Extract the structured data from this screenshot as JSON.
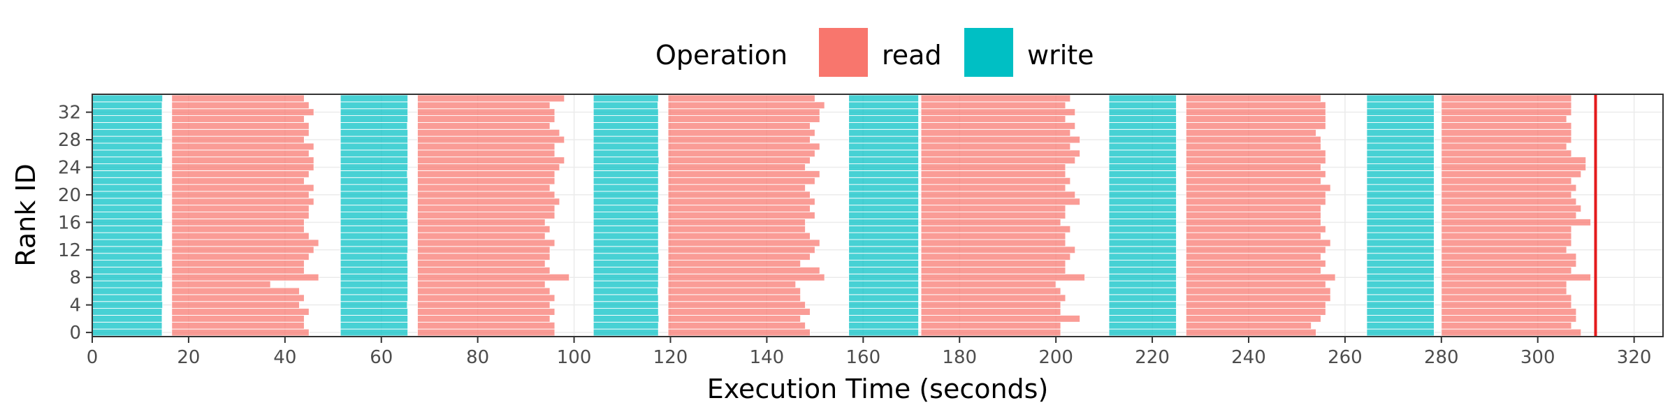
{
  "chart_data": {
    "type": "timeline",
    "xlabel": "Execution Time (seconds)",
    "ylabel": "Rank ID",
    "xlim": [
      0,
      326
    ],
    "ylim": [
      -0.6,
      34.6
    ],
    "x_ticks": [
      0,
      20,
      40,
      60,
      80,
      100,
      120,
      140,
      160,
      180,
      200,
      220,
      240,
      260,
      280,
      300,
      320
    ],
    "y_ticks": [
      0,
      4,
      8,
      12,
      16,
      20,
      24,
      28,
      32
    ],
    "ranks": 35,
    "legend": {
      "title": "Operation",
      "position": "top",
      "entries": [
        {
          "name": "read",
          "color": "#F8766D"
        },
        {
          "name": "write",
          "color": "#00BFC4"
        }
      ]
    },
    "grid": true,
    "end_marker": {
      "x": 312,
      "color": "#E41A1C"
    },
    "series": [
      {
        "name": "write",
        "color": "#00BFC4",
        "phases": [
          {
            "start": 0,
            "end": [
              14.5,
              14.5,
              14.5,
              14.5,
              14.6,
              14.5,
              14.5,
              14.6,
              14.5,
              14.6,
              14.5,
              14.5,
              14.5,
              14.6,
              14.5,
              14.5,
              14.6,
              14.5,
              14.5,
              14.5,
              14.6,
              14.5,
              14.5,
              14.5,
              14.5,
              14.6,
              14.5,
              14.5,
              14.6,
              14.5,
              14.5,
              14.5,
              14.5,
              14.5,
              14.6
            ]
          },
          {
            "start": 51.5,
            "end": [
              65.5,
              65.5,
              65.5,
              65.5,
              65.4,
              65.5,
              65.5,
              65.5,
              65.5,
              65.5,
              65.5,
              65.4,
              65.5,
              65.5,
              65.5,
              65.5,
              65.5,
              65.4,
              65.5,
              65.5,
              65.5,
              65.5,
              65.5,
              65.4,
              65.5,
              65.5,
              65.5,
              65.5,
              65.5,
              65.5,
              65.4,
              65.5,
              65.5,
              65.5,
              65.5
            ]
          },
          {
            "start": 104,
            "end": [
              117.5,
              117.5,
              117.6,
              117.5,
              117.5,
              117.5,
              117.4,
              117.5,
              117.5,
              117.5,
              117.5,
              117.6,
              117.5,
              117.5,
              117.5,
              117.5,
              117.5,
              117.5,
              117.4,
              117.5,
              117.5,
              117.5,
              117.5,
              117.5,
              117.5,
              117.6,
              117.5,
              117.5,
              117.5,
              117.5,
              117.5,
              117.5,
              117.5,
              117.4,
              117.5
            ]
          },
          {
            "start": 157,
            "end": [
              171.5,
              171.5,
              171.5,
              171.5,
              171.5,
              171.5,
              171.5,
              171.5,
              171.5,
              171.5,
              171.5,
              171.5,
              171.5,
              171.5,
              171.5,
              171.5,
              171.5,
              171.5,
              171.5,
              171.5,
              171.5,
              171.5,
              171.5,
              171.5,
              171.5,
              171.5,
              171.5,
              171.5,
              171.5,
              171.5,
              171.5,
              171.5,
              171.5,
              171.5,
              171.5
            ]
          },
          {
            "start": 211,
            "end": [
              225,
              225,
              225,
              225,
              225,
              225,
              225,
              225,
              225,
              225,
              225,
              225,
              225,
              225,
              225,
              225,
              225,
              225,
              225,
              225,
              225,
              225,
              225,
              225,
              225,
              225,
              225,
              225,
              225,
              225,
              225,
              225,
              225,
              225,
              225
            ]
          },
          {
            "start": 264.5,
            "end": [
              278.5,
              278.5,
              278.5,
              278.5,
              278.5,
              278.5,
              278.5,
              278.5,
              278.5,
              278.5,
              278.5,
              278.5,
              278.5,
              278.5,
              278.5,
              278.5,
              278.5,
              278.5,
              278.5,
              278.5,
              278.5,
              278.5,
              278.5,
              278.5,
              278.5,
              278.5,
              278.5,
              278.5,
              278.5,
              278.5,
              278.5,
              278.5,
              278.5,
              278.5,
              278.5
            ]
          }
        ]
      },
      {
        "name": "read",
        "color": "#F8766D",
        "phases": [
          {
            "start": 16.5,
            "end": [
              45,
              44,
              44,
              45,
              43,
              44,
              43,
              37,
              47,
              44,
              44,
              45,
              46,
              47,
              45,
              44,
              44,
              45,
              45,
              46,
              45,
              46,
              44,
              45,
              46,
              46,
              45,
              46,
              44,
              45,
              45,
              44,
              46,
              45,
              44
            ]
          },
          {
            "start": 67.5,
            "end": [
              96,
              96,
              95,
              96,
              95,
              96,
              95,
              94,
              99,
              95,
              94,
              95,
              95,
              96,
              94,
              95,
              94,
              96,
              96,
              97,
              96,
              95,
              96,
              96,
              97,
              98,
              96,
              96,
              98,
              97,
              95,
              96,
              96,
              95,
              98
            ]
          },
          {
            "start": 119.5,
            "end": [
              149,
              148,
              147,
              149,
              148,
              147,
              147,
              146,
              152,
              151,
              147,
              149,
              150,
              151,
              149,
              148,
              148,
              150,
              149,
              150,
              149,
              148,
              150,
              151,
              148,
              149,
              150,
              151,
              149,
              150,
              149,
              151,
              151,
              152,
              150
            ]
          },
          {
            "start": 172,
            "end": [
              201,
              201,
              205,
              201,
              201,
              202,
              201,
              200,
              206,
              202,
              202,
              203,
              204,
              202,
              202,
              203,
              201,
              202,
              202,
              205,
              204,
              202,
              203,
              202,
              202,
              204,
              205,
              203,
              205,
              203,
              204,
              202,
              204,
              202,
              203
            ]
          },
          {
            "start": 227,
            "end": [
              254,
              253,
              255,
              256,
              256,
              257,
              257,
              256,
              258,
              255,
              256,
              255,
              256,
              257,
              255,
              256,
              255,
              255,
              255,
              256,
              256,
              257,
              255,
              256,
              255,
              256,
              256,
              255,
              255,
              254,
              256,
              256,
              256,
              256,
              255
            ]
          },
          {
            "start": 280,
            "end": [
              309,
              307,
              308,
              308,
              307,
              307,
              306,
              306,
              311,
              307,
              308,
              308,
              306,
              307,
              307,
              307,
              311,
              308,
              309,
              308,
              307,
              308,
              307,
              309,
              310,
              310,
              307,
              306,
              307,
              307,
              307,
              306,
              307,
              307,
              307
            ]
          }
        ]
      }
    ]
  }
}
